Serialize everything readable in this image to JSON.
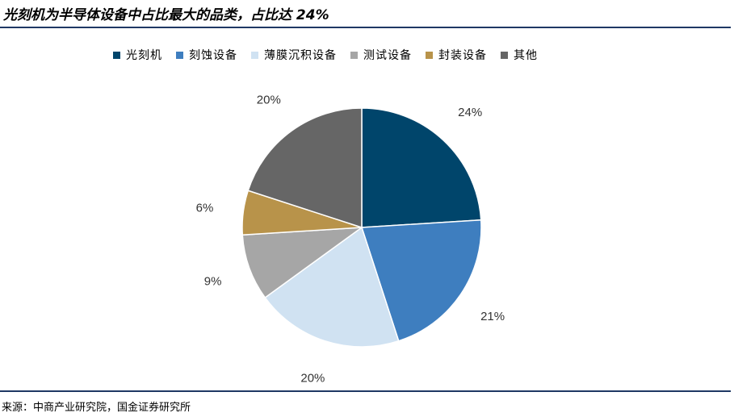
{
  "title": "光刻机为半导体设备中占比最大的品类，占比达 24%",
  "source": "来源：中商产业研究院，国金证券研究所",
  "chart_data": {
    "type": "pie",
    "title": "光刻机为半导体设备中占比最大的品类，占比达 24%",
    "legend_position": "top",
    "categories": [
      "光刻机",
      "刻蚀设备",
      "薄膜沉积设备",
      "测试设备",
      "封装设备",
      "其他"
    ],
    "values": [
      24,
      21,
      20,
      9,
      6,
      20
    ],
    "labels": [
      "24%",
      "21%",
      "20%",
      "9%",
      "6%",
      "20%"
    ],
    "colors": [
      "#00456b",
      "#3e7ebf",
      "#d0e2f2",
      "#a6a6a6",
      "#b8934a",
      "#666666"
    ],
    "start_angle": "12 o'clock",
    "direction": "clockwise"
  }
}
